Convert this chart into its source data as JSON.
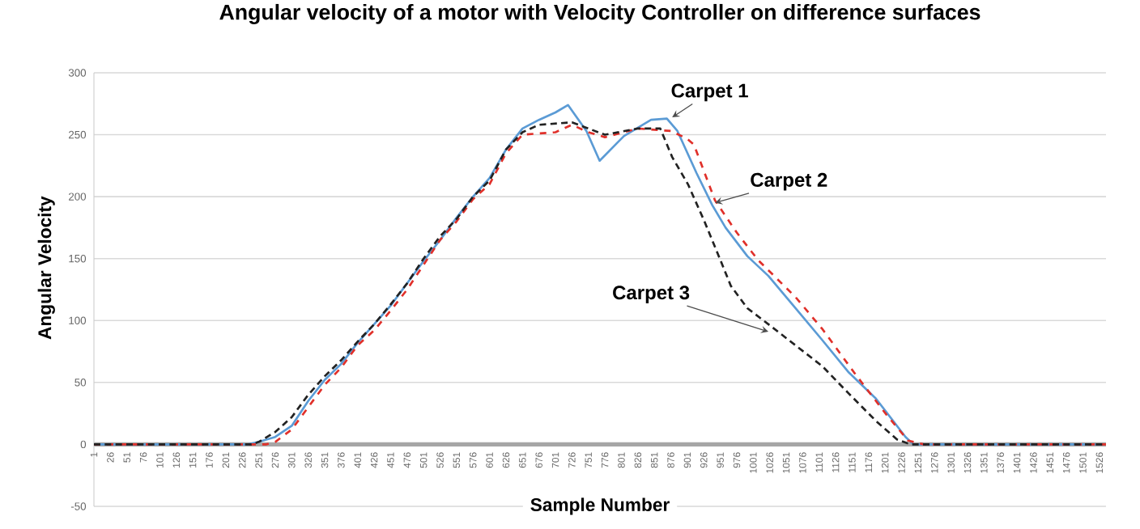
{
  "chart_data": {
    "type": "line",
    "title": "Angular velocity of a motor with Velocity Controller on difference surfaces",
    "xlabel": "Sample Number",
    "ylabel": "Angular Velocity",
    "xlim": [
      1,
      1536
    ],
    "ylim": [
      -50,
      300
    ],
    "xticks": [
      1,
      26,
      51,
      76,
      101,
      126,
      151,
      176,
      201,
      226,
      251,
      276,
      301,
      326,
      351,
      376,
      401,
      426,
      451,
      476,
      501,
      526,
      551,
      576,
      601,
      626,
      651,
      676,
      701,
      726,
      751,
      776,
      801,
      826,
      851,
      876,
      901,
      926,
      951,
      976,
      1001,
      1026,
      1051,
      1076,
      1101,
      1126,
      1151,
      1176,
      1201,
      1226,
      1251,
      1276,
      1301,
      1326,
      1351,
      1376,
      1401,
      1426,
      1451,
      1476,
      1501,
      1526
    ],
    "yticks": [
      -50,
      0,
      50,
      100,
      150,
      200,
      250,
      300
    ],
    "grid": "y",
    "series": [
      {
        "name": "Carpet 1",
        "color": "#5b9bd5",
        "line_style": "solid",
        "x": [
          1,
          235,
          251,
          276,
          301,
          326,
          351,
          376,
          401,
          426,
          451,
          476,
          501,
          526,
          551,
          576,
          601,
          626,
          651,
          676,
          701,
          720,
          748,
          768,
          805,
          846,
          870,
          886,
          915,
          939,
          959,
          992,
          1024,
          1065,
          1106,
          1146,
          1187,
          1232,
          1244,
          1530
        ],
        "values": [
          0,
          0,
          2,
          6,
          15,
          35,
          52,
          65,
          82,
          97,
          112,
          130,
          148,
          165,
          183,
          200,
          215,
          238,
          255,
          262,
          268,
          274,
          253,
          229,
          249,
          262,
          263,
          253,
          219,
          193,
          175,
          152,
          136,
          110,
          84,
          58,
          37,
          6,
          0,
          0
        ]
      },
      {
        "name": "Carpet 2",
        "color": "#e0302a",
        "line_style": "dashed",
        "x": [
          1,
          262,
          276,
          301,
          326,
          351,
          376,
          401,
          426,
          451,
          476,
          501,
          526,
          551,
          576,
          601,
          626,
          651,
          676,
          701,
          726,
          751,
          776,
          826,
          876,
          900,
          911,
          943,
          976,
          1008,
          1065,
          1106,
          1154,
          1203,
          1236,
          1260,
          1536
        ],
        "values": [
          0,
          0,
          2,
          12,
          30,
          48,
          62,
          80,
          92,
          108,
          125,
          145,
          165,
          180,
          198,
          210,
          235,
          250,
          251,
          252,
          258,
          252,
          248,
          255,
          253,
          247,
          242,
          197,
          171,
          149,
          119,
          93,
          58,
          24,
          3,
          0,
          0
        ]
      },
      {
        "name": "Carpet 3",
        "color": "#222222",
        "line_style": "dotted",
        "x": [
          1,
          240,
          251,
          276,
          301,
          326,
          351,
          376,
          401,
          426,
          451,
          476,
          501,
          526,
          551,
          576,
          601,
          626,
          651,
          676,
          726,
          776,
          826,
          860,
          878,
          902,
          927,
          951,
          967,
          992,
          1024,
          1065,
          1106,
          1146,
          1187,
          1219,
          1240,
          1536
        ],
        "values": [
          0,
          0,
          2,
          10,
          22,
          40,
          55,
          68,
          83,
          97,
          113,
          130,
          150,
          168,
          182,
          200,
          213,
          238,
          252,
          258,
          260,
          250,
          255,
          255,
          232,
          210,
          180,
          149,
          128,
          110,
          97,
          80,
          63,
          41,
          19,
          4,
          0,
          0
        ]
      }
    ]
  }
}
